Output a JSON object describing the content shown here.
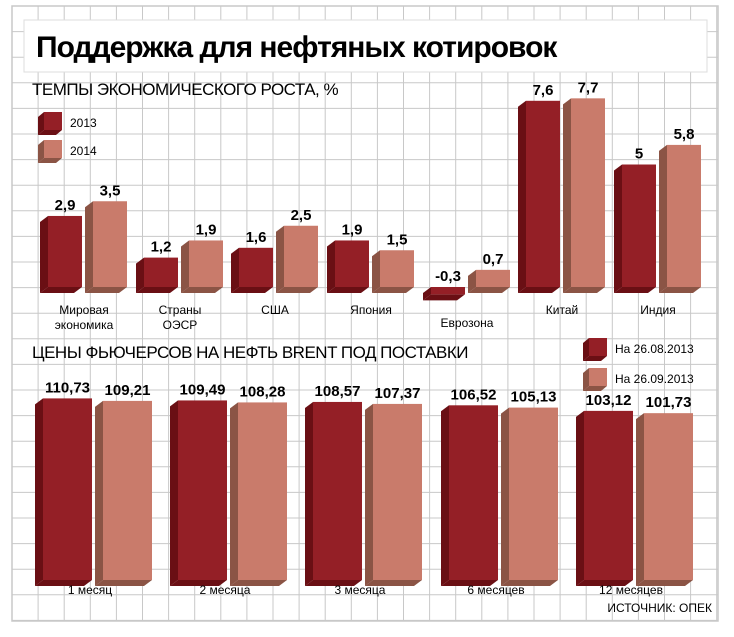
{
  "title": "Поддержка для нефтяных котировок",
  "source": "ИСТОЧНИК: ОПЕК",
  "colors": {
    "dark": "#941f26",
    "dark_side": "#6a0f14",
    "light": "#c97b6b",
    "light_side": "#8b5445",
    "grid": "#c8c8c8"
  },
  "chart_data": [
    {
      "type": "bar",
      "title": "ТЕМПЫ ЭКОНОМИЧЕСКОГО РОСТА, %",
      "categories": [
        "Мировая экономика",
        "Страны ОЭСР",
        "США",
        "Япония",
        "Еврозона",
        "Китай",
        "Индия"
      ],
      "category_lines": [
        [
          "Мировая",
          "экономика"
        ],
        [
          "Страны",
          "ОЭСР"
        ],
        [
          "США"
        ],
        [
          "Япония"
        ],
        [
          "Еврозона"
        ],
        [
          "Китай"
        ],
        [
          "Индия"
        ]
      ],
      "series": [
        {
          "name": "2013",
          "values": [
            2.9,
            1.2,
            1.6,
            1.9,
            -0.3,
            7.6,
            5.0
          ],
          "labels": [
            "2,9",
            "1,2",
            "1,6",
            "1,9",
            "-0,3",
            "7,6",
            "5"
          ]
        },
        {
          "name": "2014",
          "values": [
            3.5,
            1.9,
            2.5,
            1.5,
            0.7,
            7.7,
            5.8
          ],
          "labels": [
            "3,5",
            "1,9",
            "2,5",
            "1,5",
            "0,7",
            "7,7",
            "5,8"
          ]
        }
      ],
      "legend": "top-left"
    },
    {
      "type": "bar",
      "title": "ЦЕНЫ ФЬЮЧЕРСОВ НА НЕФТЬ BRENT ПОД ПОСТАВКИ",
      "categories": [
        "1 месяц",
        "2 месяца",
        "3 месяца",
        "6 месяцев",
        "12 месяцев"
      ],
      "series": [
        {
          "name": "На 26.08.2013",
          "values": [
            110.73,
            109.49,
            108.57,
            106.52,
            103.12
          ],
          "labels": [
            "110,73",
            "109,49",
            "108,57",
            "106,52",
            "103,12"
          ]
        },
        {
          "name": "На 26.09.2013",
          "values": [
            109.21,
            108.28,
            107.37,
            105.13,
            101.73
          ],
          "labels": [
            "109,21",
            "108,28",
            "107,37",
            "105,13",
            "101,73"
          ]
        }
      ],
      "legend": "top-right"
    }
  ]
}
